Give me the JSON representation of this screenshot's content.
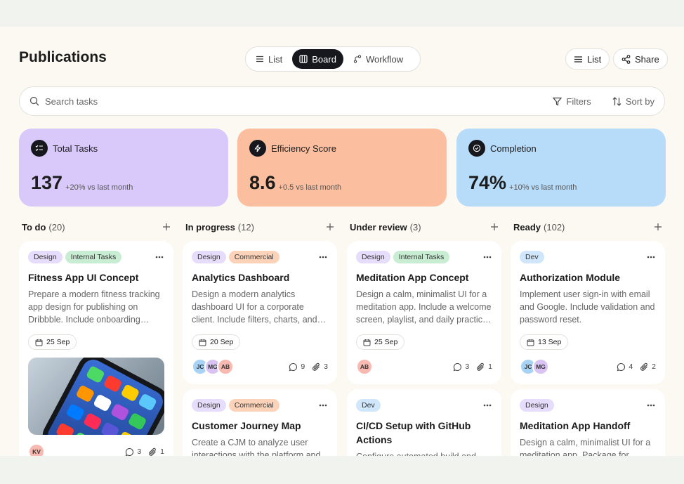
{
  "header": {
    "title": "Publications",
    "views": [
      {
        "label": "List",
        "active": false
      },
      {
        "label": "Board",
        "active": true
      },
      {
        "label": "Workflow",
        "active": false
      }
    ],
    "actions": [
      "List",
      "Share"
    ]
  },
  "search": {
    "placeholder": "Search tasks",
    "filters": "Filters",
    "sort": "Sort by"
  },
  "stats": [
    {
      "label": "Total Tasks",
      "value": "137",
      "delta": "+20% vs last month",
      "color": "#d9c9fb"
    },
    {
      "label": "Efficiency Score",
      "value": "8.6",
      "delta": "+0.5 vs last month",
      "color": "#fbbf9f"
    },
    {
      "label": "Completion",
      "value": "74%",
      "delta": "+10% vs last month",
      "color": "#b7dcfa"
    }
  ],
  "columns": [
    {
      "title": "To do",
      "count": "(20)",
      "cards": [
        {
          "tags": [
            {
              "label": "Design",
              "color": "#e6dcfb"
            },
            {
              "label": "Internal Tasks",
              "color": "#c8edd3"
            }
          ],
          "title": "Fitness App UI Concept",
          "description": "Prepare a modern fitness tracking app design for publishing on Dribbble. Include onboarding screens and a dashboard.",
          "date": "25 Sep",
          "image": true,
          "avatars": [
            {
              "initials": "KV",
              "color": "#f8b9b0"
            }
          ],
          "comments": 3,
          "attachments": 1
        }
      ]
    },
    {
      "title": "In progress",
      "count": "(12)",
      "cards": [
        {
          "tags": [
            {
              "label": "Design",
              "color": "#e6dcfb"
            },
            {
              "label": "Commercial",
              "color": "#fcd2b8"
            }
          ],
          "title": "Analytics Dashboard",
          "description": "Design a modern analytics dashboard UI for a corporate client. Include filters, charts, and a dark mode option.",
          "date": "20 Sep",
          "avatars": [
            {
              "initials": "JC",
              "color": "#a9d3f5"
            },
            {
              "initials": "MG",
              "color": "#d8c3f3"
            },
            {
              "initials": "AB",
              "color": "#f8b9b0"
            }
          ],
          "comments": 9,
          "attachments": 3
        },
        {
          "tags": [
            {
              "label": "Design",
              "color": "#e6dcfb"
            },
            {
              "label": "Commercial",
              "color": "#fcd2b8"
            }
          ],
          "title": "Customer Journey Map",
          "description": "Create a CJM to analyze user interactions with the platform and find pain points."
        }
      ]
    },
    {
      "title": "Under review",
      "count": "(3)",
      "cards": [
        {
          "tags": [
            {
              "label": "Design",
              "color": "#e6dcfb"
            },
            {
              "label": "Internal Tasks",
              "color": "#c8edd3"
            }
          ],
          "title": "Meditation App Concept",
          "description": "Design a calm, minimalist UI for a meditation app. Include a welcome screen, playlist, and daily practice tracker.",
          "date": "25 Sep",
          "avatars": [
            {
              "initials": "AB",
              "color": "#f8b9b0"
            }
          ],
          "comments": 3,
          "attachments": 1
        },
        {
          "tags": [
            {
              "label": "Dev",
              "color": "#cfe6fb"
            }
          ],
          "title": "CI/CD Setup with GitHub Actions",
          "description": "Configure automated build and deployment pipelines."
        }
      ]
    },
    {
      "title": "Ready",
      "count": "(102)",
      "cards": [
        {
          "tags": [
            {
              "label": "Dev",
              "color": "#cfe6fb"
            }
          ],
          "title": "Authorization Module",
          "description": "Implement user sign-in with email and Google. Include validation and password reset.",
          "date": "13 Sep",
          "avatars": [
            {
              "initials": "JC",
              "color": "#a9d3f5"
            },
            {
              "initials": "MG",
              "color": "#d8c3f3"
            }
          ],
          "comments": 4,
          "attachments": 2
        },
        {
          "tags": [
            {
              "label": "Design",
              "color": "#e6dcfb"
            }
          ],
          "title": "Meditation App Handoff",
          "description": "Design a calm, minimalist UI for a meditation app. Package for developer handoff."
        }
      ]
    }
  ]
}
